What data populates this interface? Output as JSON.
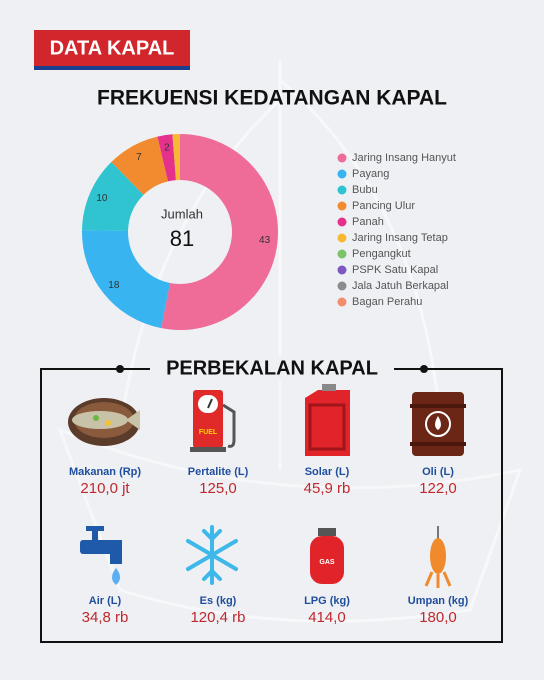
{
  "header": {
    "badge": "DATA KAPAL"
  },
  "chart_data": {
    "type": "donut",
    "title": "FREKUENSI KEDATANGAN KAPAL",
    "center_label": "Jumlah",
    "total": 81,
    "series": [
      {
        "name": "Jaring Insang Hanyut",
        "color": "#ef6b98",
        "value": 43
      },
      {
        "name": "Payang",
        "color": "#38b4f0",
        "value": 18
      },
      {
        "name": "Bubu",
        "color": "#30c3d0",
        "value": 10
      },
      {
        "name": "Pancing Ulur",
        "color": "#f28b2f",
        "value": 7
      },
      {
        "name": "Panah",
        "color": "#e5318c",
        "value": 2
      },
      {
        "name": "Jaring Insang Tetap",
        "color": "#f7b834",
        "value": 1
      },
      {
        "name": "Pengangkut",
        "color": "#7cc36b",
        "value": 0
      },
      {
        "name": "PSPK Satu Kapal",
        "color": "#7e57c2",
        "value": 0
      },
      {
        "name": "Jala Jatuh Berkapal",
        "color": "#8c8c8c",
        "value": 0
      },
      {
        "name": "Bagan Perahu",
        "color": "#f38c6d",
        "value": 0
      }
    ]
  },
  "supplies": {
    "title": "PERBEKALAN KAPAL",
    "items": [
      {
        "label": "Makanan (Rp)",
        "value": "210,0 jt"
      },
      {
        "label": "Pertalite (L)",
        "value": "125,0"
      },
      {
        "label": "Solar (L)",
        "value": "45,9 rb"
      },
      {
        "label": "Oli (L)",
        "value": "122,0"
      },
      {
        "label": "Air (L)",
        "value": "34,8 rb"
      },
      {
        "label": "Es (kg)",
        "value": "120,4 rb"
      },
      {
        "label": "LPG (kg)",
        "value": "414,0"
      },
      {
        "label": "Umpan (kg)",
        "value": "180,0"
      }
    ]
  }
}
